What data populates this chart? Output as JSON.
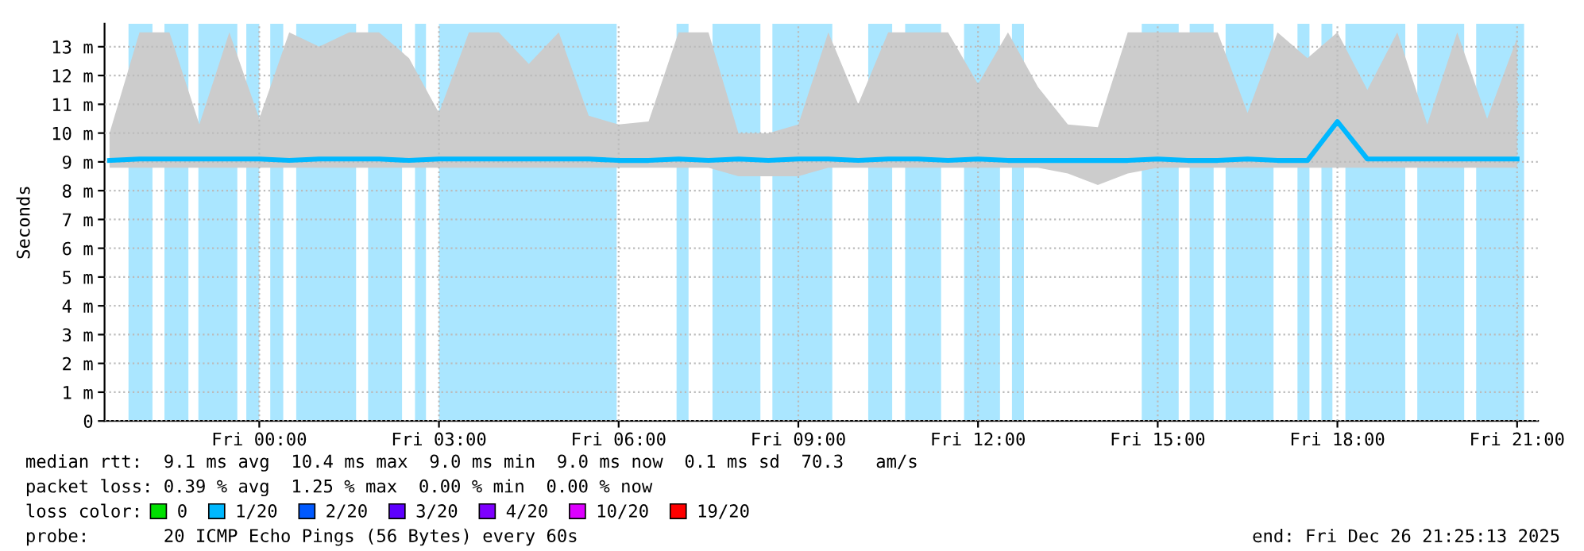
{
  "chart_data": {
    "type": "line",
    "ylabel": "Seconds",
    "x": [
      "2025-12-25T21:30",
      "2025-12-25T22:00",
      "2025-12-25T22:30",
      "2025-12-25T23:00",
      "2025-12-25T23:30",
      "2025-12-26T00:00",
      "2025-12-26T00:30",
      "2025-12-26T01:00",
      "2025-12-26T01:30",
      "2025-12-26T02:00",
      "2025-12-26T02:30",
      "2025-12-26T03:00",
      "2025-12-26T03:30",
      "2025-12-26T04:00",
      "2025-12-26T04:30",
      "2025-12-26T05:00",
      "2025-12-26T05:30",
      "2025-12-26T06:00",
      "2025-12-26T06:30",
      "2025-12-26T07:00",
      "2025-12-26T07:30",
      "2025-12-26T08:00",
      "2025-12-26T08:30",
      "2025-12-26T09:00",
      "2025-12-26T09:30",
      "2025-12-26T10:00",
      "2025-12-26T10:30",
      "2025-12-26T11:00",
      "2025-12-26T11:30",
      "2025-12-26T12:00",
      "2025-12-26T12:30",
      "2025-12-26T13:00",
      "2025-12-26T13:30",
      "2025-12-26T14:00",
      "2025-12-26T14:30",
      "2025-12-26T15:00",
      "2025-12-26T15:30",
      "2025-12-26T16:00",
      "2025-12-26T16:30",
      "2025-12-26T17:00",
      "2025-12-26T17:30",
      "2025-12-26T18:00",
      "2025-12-26T18:30",
      "2025-12-26T19:00",
      "2025-12-26T19:30",
      "2025-12-26T20:00",
      "2025-12-26T20:30",
      "2025-12-26T21:00"
    ],
    "xlim": [
      "2025-12-25T21:25",
      "2025-12-26T21:21"
    ],
    "xticks": [
      {
        "value": "2025-12-26T00:00",
        "label": "Fri 00:00"
      },
      {
        "value": "2025-12-26T03:00",
        "label": "Fri 03:00"
      },
      {
        "value": "2025-12-26T06:00",
        "label": "Fri 06:00"
      },
      {
        "value": "2025-12-26T09:00",
        "label": "Fri 09:00"
      },
      {
        "value": "2025-12-26T12:00",
        "label": "Fri 12:00"
      },
      {
        "value": "2025-12-26T15:00",
        "label": "Fri 15:00"
      },
      {
        "value": "2025-12-26T18:00",
        "label": "Fri 18:00"
      },
      {
        "value": "2025-12-26T21:00",
        "label": "Fri 21:00"
      }
    ],
    "ylim": [
      0,
      13.8
    ],
    "yticks": [
      0,
      {
        "value": 1,
        "label": "1 m"
      },
      {
        "value": 2,
        "label": "2 m"
      },
      {
        "value": 3,
        "label": "3 m"
      },
      {
        "value": 4,
        "label": "4 m"
      },
      {
        "value": 5,
        "label": "5 m"
      },
      {
        "value": 6,
        "label": "6 m"
      },
      {
        "value": 7,
        "label": "7 m"
      },
      {
        "value": 8,
        "label": "8 m"
      },
      {
        "value": 9,
        "label": "9 m"
      },
      {
        "value": 10,
        "label": "10 m"
      },
      {
        "value": 11,
        "label": "11 m"
      },
      {
        "value": 12,
        "label": "12 m"
      },
      {
        "value": 13,
        "label": "13 m"
      }
    ],
    "grid": true,
    "legend": "bottom",
    "legend_title": "loss color:",
    "series": [
      {
        "name": "0",
        "color": "#00e000",
        "values": [
          null,
          null,
          null,
          null,
          null,
          null,
          null,
          null,
          null,
          null,
          null,
          null,
          null,
          null,
          null,
          null,
          null,
          null,
          null,
          null,
          null,
          null,
          null,
          null,
          null,
          null,
          null,
          null,
          null,
          null,
          null,
          null,
          null,
          null,
          null,
          null,
          null,
          null,
          null,
          null,
          null,
          null,
          null,
          null,
          null,
          null,
          null,
          null
        ]
      },
      {
        "name": "1/20",
        "color": "#00b8ff",
        "values": [
          9.05,
          9.1,
          9.1,
          9.1,
          9.1,
          9.1,
          9.05,
          9.1,
          9.1,
          9.1,
          9.05,
          9.1,
          9.1,
          9.1,
          9.1,
          9.1,
          9.1,
          9.05,
          9.05,
          9.1,
          9.05,
          9.1,
          9.05,
          9.1,
          9.1,
          9.05,
          9.1,
          9.1,
          9.05,
          9.1,
          9.05,
          9.05,
          9.05,
          9.05,
          9.05,
          9.1,
          9.05,
          9.05,
          9.1,
          9.05,
          9.05,
          10.4,
          9.1,
          9.1,
          9.1,
          9.1,
          9.1,
          9.1
        ],
        "lower": [
          8.8,
          8.8,
          8.8,
          8.8,
          8.8,
          8.8,
          8.8,
          8.8,
          8.8,
          8.8,
          8.8,
          8.8,
          8.8,
          8.8,
          8.8,
          8.8,
          8.8,
          8.8,
          8.8,
          8.8,
          8.8,
          8.5,
          8.5,
          8.5,
          8.8,
          8.8,
          8.8,
          8.8,
          8.8,
          8.8,
          8.8,
          8.8,
          8.6,
          8.2,
          8.6,
          8.8,
          8.8,
          8.8,
          8.8,
          8.8,
          8.8,
          8.8,
          8.8,
          8.8,
          8.8,
          8.8,
          8.8,
          8.8
        ],
        "upper": [
          10.0,
          13.5,
          13.5,
          10.3,
          13.5,
          10.5,
          13.5,
          13.0,
          13.5,
          13.5,
          12.6,
          10.7,
          13.5,
          13.5,
          12.4,
          13.5,
          10.6,
          10.3,
          10.4,
          13.5,
          13.5,
          10.0,
          10.0,
          10.3,
          13.5,
          11.0,
          13.5,
          13.5,
          13.5,
          11.7,
          13.5,
          11.6,
          10.3,
          10.2,
          13.5,
          13.5,
          13.5,
          13.5,
          10.7,
          13.5,
          12.6,
          13.5,
          11.5,
          13.5,
          10.3,
          13.5,
          10.5,
          13.3
        ]
      },
      {
        "name": "2/20",
        "color": "#0059ff",
        "values": [
          null,
          null,
          null,
          null,
          null,
          null,
          null,
          null,
          null,
          null,
          null,
          null,
          null,
          null,
          null,
          null,
          null,
          null,
          null,
          null,
          null,
          null,
          null,
          null,
          null,
          null,
          null,
          null,
          null,
          null,
          null,
          null,
          null,
          null,
          null,
          null,
          null,
          null,
          null,
          null,
          null,
          null,
          null,
          null,
          null,
          null,
          null,
          null
        ]
      },
      {
        "name": "3/20",
        "color": "#5e00ff",
        "values": [
          null,
          null,
          null,
          null,
          null,
          null,
          null,
          null,
          null,
          null,
          null,
          null,
          null,
          null,
          null,
          null,
          null,
          null,
          null,
          null,
          null,
          null,
          null,
          null,
          null,
          null,
          null,
          null,
          null,
          null,
          null,
          null,
          null,
          null,
          null,
          null,
          null,
          null,
          null,
          null,
          null,
          null,
          null,
          null,
          null,
          null,
          null,
          null
        ]
      },
      {
        "name": "4/20",
        "color": "#7e00ff",
        "values": [
          null,
          null,
          null,
          null,
          null,
          null,
          null,
          null,
          null,
          null,
          null,
          null,
          null,
          null,
          null,
          null,
          null,
          null,
          null,
          null,
          null,
          null,
          null,
          null,
          null,
          null,
          null,
          null,
          null,
          null,
          null,
          null,
          null,
          null,
          null,
          null,
          null,
          null,
          null,
          null,
          null,
          null,
          null,
          null,
          null,
          null,
          null,
          null
        ]
      },
      {
        "name": "10/20",
        "color": "#dd00ff",
        "values": [
          null,
          null,
          null,
          null,
          null,
          null,
          null,
          null,
          null,
          null,
          null,
          null,
          null,
          null,
          null,
          null,
          null,
          null,
          null,
          null,
          null,
          null,
          null,
          null,
          null,
          null,
          null,
          null,
          null,
          null,
          null,
          null,
          null,
          null,
          null,
          null,
          null,
          null,
          null,
          null,
          null,
          null,
          null,
          null,
          null,
          null,
          null,
          null
        ]
      },
      {
        "name": "19/20",
        "color": "#ff0000",
        "values": [
          null,
          null,
          null,
          null,
          null,
          null,
          null,
          null,
          null,
          null,
          null,
          null,
          null,
          null,
          null,
          null,
          null,
          null,
          null,
          null,
          null,
          null,
          null,
          null,
          null,
          null,
          null,
          null,
          null,
          null,
          null,
          null,
          null,
          null,
          null,
          null,
          null,
          null,
          null,
          null,
          null,
          null,
          null,
          null,
          null,
          null,
          null,
          null
        ]
      }
    ],
    "bands": [
      {
        "axis": "x",
        "from": "2025-12-25T21:49",
        "to": "2025-12-25T22:13",
        "color": "#aae6ff"
      },
      {
        "axis": "x",
        "from": "2025-12-25T22:25",
        "to": "2025-12-25T22:49",
        "color": "#aae6ff"
      },
      {
        "axis": "x",
        "from": "2025-12-25T22:59",
        "to": "2025-12-25T23:38",
        "color": "#aae6ff"
      },
      {
        "axis": "x",
        "from": "2025-12-25T23:47",
        "to": "2025-12-26T00:00",
        "color": "#aae6ff"
      },
      {
        "axis": "x",
        "from": "2025-12-26T00:11",
        "to": "2025-12-26T00:24",
        "color": "#aae6ff"
      },
      {
        "axis": "x",
        "from": "2025-12-26T00:37",
        "to": "2025-12-26T01:37",
        "color": "#aae6ff"
      },
      {
        "axis": "x",
        "from": "2025-12-26T01:49",
        "to": "2025-12-26T02:23",
        "color": "#aae6ff"
      },
      {
        "axis": "x",
        "from": "2025-12-26T02:36",
        "to": "2025-12-26T02:47",
        "color": "#aae6ff"
      },
      {
        "axis": "x",
        "from": "2025-12-26T03:00",
        "to": "2025-12-26T05:58",
        "color": "#aae6ff"
      },
      {
        "axis": "x",
        "from": "2025-12-26T06:58",
        "to": "2025-12-26T07:10",
        "color": "#aae6ff"
      },
      {
        "axis": "x",
        "from": "2025-12-26T07:34",
        "to": "2025-12-26T08:22",
        "color": "#aae6ff"
      },
      {
        "axis": "x",
        "from": "2025-12-26T08:34",
        "to": "2025-12-26T09:34",
        "color": "#aae6ff"
      },
      {
        "axis": "x",
        "from": "2025-12-26T10:10",
        "to": "2025-12-26T10:34",
        "color": "#aae6ff"
      },
      {
        "axis": "x",
        "from": "2025-12-26T10:47",
        "to": "2025-12-26T11:23",
        "color": "#aae6ff"
      },
      {
        "axis": "x",
        "from": "2025-12-26T11:46",
        "to": "2025-12-26T12:22",
        "color": "#aae6ff"
      },
      {
        "axis": "x",
        "from": "2025-12-26T12:34",
        "to": "2025-12-26T12:46",
        "color": "#aae6ff"
      },
      {
        "axis": "x",
        "from": "2025-12-26T14:44",
        "to": "2025-12-26T15:21",
        "color": "#aae6ff"
      },
      {
        "axis": "x",
        "from": "2025-12-26T15:32",
        "to": "2025-12-26T15:56",
        "color": "#aae6ff"
      },
      {
        "axis": "x",
        "from": "2025-12-26T16:08",
        "to": "2025-12-26T16:56",
        "color": "#aae6ff"
      },
      {
        "axis": "x",
        "from": "2025-12-26T17:20",
        "to": "2025-12-26T17:32",
        "color": "#aae6ff"
      },
      {
        "axis": "x",
        "from": "2025-12-26T17:44",
        "to": "2025-12-26T17:55",
        "color": "#aae6ff"
      },
      {
        "axis": "x",
        "from": "2025-12-26T18:08",
        "to": "2025-12-26T19:08",
        "color": "#aae6ff"
      },
      {
        "axis": "x",
        "from": "2025-12-26T19:20",
        "to": "2025-12-26T20:07",
        "color": "#aae6ff"
      },
      {
        "axis": "x",
        "from": "2025-12-26T20:19",
        "to": "2025-12-26T21:07",
        "color": "#aae6ff"
      }
    ],
    "annotations": [
      "median rtt:  9.1 ms avg  10.4 ms max  9.0 ms min  9.0 ms now  0.1 ms sd  70.3   am/s",
      "packet loss: 0.39 % avg  1.25 % max  0.00 % min  0.00 % now",
      "probe:       20 ICMP Echo Pings (56 Bytes) every 60s",
      "end: Fri Dec 26 21:25:13 2025"
    ]
  }
}
